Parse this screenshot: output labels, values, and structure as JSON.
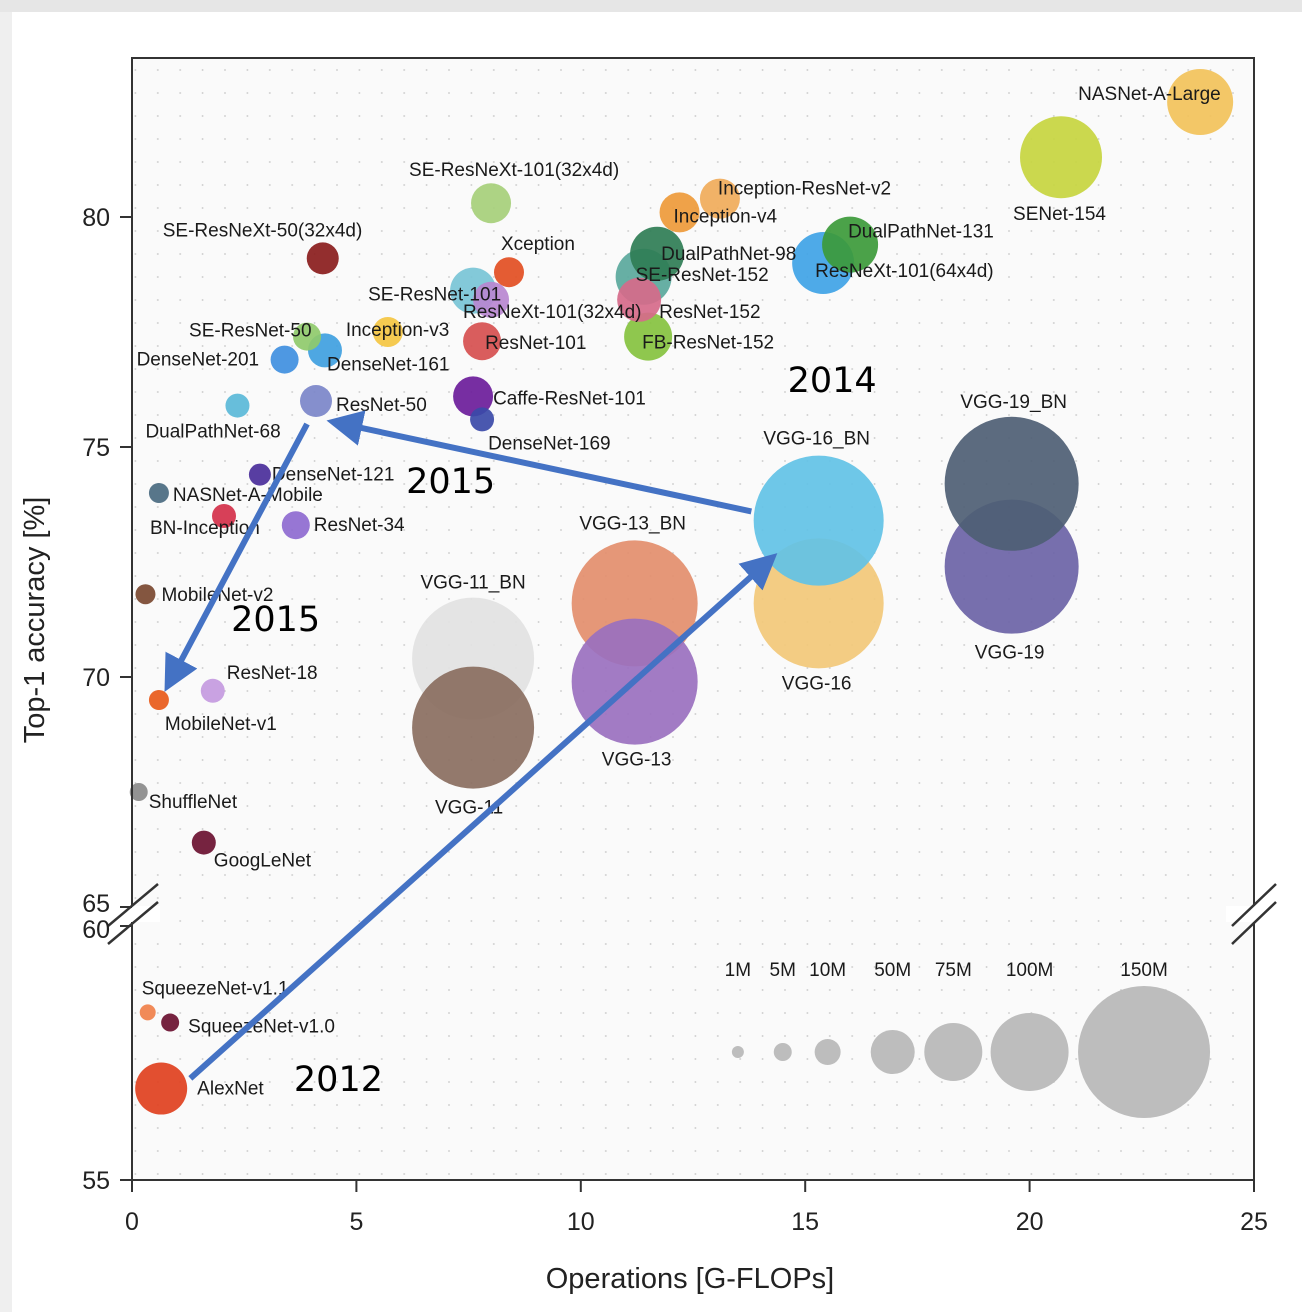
{
  "chart_data": {
    "type": "scatter",
    "xlabel": "Operations [G-FLOPs]",
    "ylabel": "Top-1 accuracy [%]",
    "xlim": [
      0,
      25
    ],
    "ylim_lower": [
      55,
      60
    ],
    "ylim_upper": [
      65,
      83.5
    ],
    "x_ticks": [
      0,
      5,
      10,
      15,
      20,
      25
    ],
    "y_ticks_upper": [
      65,
      70,
      75,
      80
    ],
    "y_ticks_lower": [
      55,
      60
    ],
    "axis_break": true,
    "grid": true,
    "size_legend": [
      {
        "label": "1M",
        "x": 13.5,
        "r": 6
      },
      {
        "label": "5M",
        "x": 14.5,
        "r": 9
      },
      {
        "label": "10M",
        "x": 15.5,
        "r": 13
      },
      {
        "label": "50M",
        "x": 16.95,
        "r": 22
      },
      {
        "label": "75M",
        "x": 18.3,
        "r": 29
      },
      {
        "label": "100M",
        "x": 20.0,
        "r": 39
      },
      {
        "label": "150M",
        "x": 22.55,
        "r": 66
      }
    ],
    "points": [
      {
        "name": "NASNet-A-Large",
        "x": 23.8,
        "y": 82.5,
        "r": 33,
        "color": "#f2c25a"
      },
      {
        "name": "SENet-154",
        "x": 20.7,
        "y": 81.3,
        "r": 41,
        "color": "#c7d53f"
      },
      {
        "name": "SE-ResNeXt-101(32x4d)",
        "x": 8.0,
        "y": 80.3,
        "r": 20,
        "color": "#a6cf79"
      },
      {
        "name": "Inception-ResNet-v2",
        "x": 13.1,
        "y": 80.4,
        "r": 20,
        "color": "#f0ab5a"
      },
      {
        "name": "Inception-v4",
        "x": 12.2,
        "y": 80.1,
        "r": 20,
        "color": "#ee9a3a"
      },
      {
        "name": "DualPathNet-131",
        "x": 16.0,
        "y": 79.4,
        "r": 28,
        "color": "#3c9a3a"
      },
      {
        "name": "SE-ResNeXt-50(32x4d)",
        "x": 4.25,
        "y": 79.1,
        "r": 16,
        "color": "#8a1c1c"
      },
      {
        "name": "DualPathNet-98",
        "x": 11.7,
        "y": 79.2,
        "r": 27,
        "color": "#2f7d55"
      },
      {
        "name": "ResNeXt-101(64x4d)",
        "x": 15.4,
        "y": 79.0,
        "r": 31,
        "color": "#3fa3e6"
      },
      {
        "name": "Xception",
        "x": 8.4,
        "y": 78.8,
        "r": 15,
        "color": "#e24e22"
      },
      {
        "name": "SE-ResNet-152",
        "x": 11.4,
        "y": 78.7,
        "r": 28,
        "color": "#5aa89c"
      },
      {
        "name": "SE-ResNet-101",
        "x": 7.6,
        "y": 78.4,
        "r": 23,
        "color": "#78c4d6"
      },
      {
        "name": "ResNeXt-101(32x4d)",
        "x": 8.0,
        "y": 78.2,
        "r": 18,
        "color": "#b887d0"
      },
      {
        "name": "ResNet-152",
        "x": 11.3,
        "y": 78.2,
        "r": 22,
        "color": "#d66a8a"
      },
      {
        "name": "FB-ResNet-152",
        "x": 11.5,
        "y": 77.4,
        "r": 24,
        "color": "#86c23f"
      },
      {
        "name": "SE-ResNet-50",
        "x": 3.9,
        "y": 77.4,
        "r": 14,
        "color": "#8fca6b"
      },
      {
        "name": "Inception-v3",
        "x": 5.7,
        "y": 77.5,
        "r": 15,
        "color": "#f4c542"
      },
      {
        "name": "ResNet-101",
        "x": 7.8,
        "y": 77.3,
        "r": 19,
        "color": "#d64f4f"
      },
      {
        "name": "DenseNet-201",
        "x": 3.4,
        "y": 76.9,
        "r": 14,
        "color": "#3f8fe0"
      },
      {
        "name": "DenseNet-161",
        "x": 4.3,
        "y": 77.1,
        "r": 17,
        "color": "#3fa0e0"
      },
      {
        "name": "Caffe-ResNet-101",
        "x": 7.6,
        "y": 76.1,
        "r": 20,
        "color": "#6b1c9a"
      },
      {
        "name": "ResNet-50",
        "x": 4.1,
        "y": 76.0,
        "r": 16,
        "color": "#7b86c9"
      },
      {
        "name": "DenseNet-169",
        "x": 7.8,
        "y": 75.6,
        "r": 12,
        "color": "#3b4aa8"
      },
      {
        "name": "DualPathNet-68",
        "x": 2.35,
        "y": 75.9,
        "r": 12,
        "color": "#5ab8d8"
      },
      {
        "name": "DenseNet-121",
        "x": 2.85,
        "y": 74.4,
        "r": 11,
        "color": "#4a2e9a"
      },
      {
        "name": "NASNet-A-Mobile",
        "x": 0.6,
        "y": 74.0,
        "r": 10,
        "color": "#4a6a80"
      },
      {
        "name": "BN-Inception",
        "x": 2.05,
        "y": 73.5,
        "r": 12,
        "color": "#d4304a"
      },
      {
        "name": "ResNet-34",
        "x": 3.65,
        "y": 73.3,
        "r": 14,
        "color": "#8e6ad0"
      },
      {
        "name": "MobileNet-v2",
        "x": 0.3,
        "y": 71.8,
        "r": 10,
        "color": "#7a4830"
      },
      {
        "name": "ResNet-18",
        "x": 1.8,
        "y": 69.7,
        "r": 12,
        "color": "#c49ae0"
      },
      {
        "name": "MobileNet-v1",
        "x": 0.6,
        "y": 69.5,
        "r": 10,
        "color": "#e85a1a"
      },
      {
        "name": "ShuffleNet",
        "x": 0.15,
        "y": 67.5,
        "r": 9,
        "color": "#8a8a8a"
      },
      {
        "name": "GoogLeNet",
        "x": 1.6,
        "y": 66.4,
        "r": 12,
        "color": "#6a1030"
      },
      {
        "name": "VGG-19_BN",
        "x": 19.6,
        "y": 74.2,
        "r": 67,
        "color": "#4e5e74"
      },
      {
        "name": "VGG-19",
        "x": 19.6,
        "y": 72.4,
        "r": 67,
        "color": "#6b63a6"
      },
      {
        "name": "VGG-16_BN",
        "x": 15.3,
        "y": 73.4,
        "r": 65,
        "color": "#62c2e6"
      },
      {
        "name": "VGG-16",
        "x": 15.3,
        "y": 71.6,
        "r": 65,
        "color": "#f2c878"
      },
      {
        "name": "VGG-13_BN",
        "x": 11.2,
        "y": 71.6,
        "r": 63,
        "color": "#e38e6c"
      },
      {
        "name": "VGG-13",
        "x": 11.2,
        "y": 69.9,
        "r": 63,
        "color": "#9a70bf"
      },
      {
        "name": "VGG-11_BN",
        "x": 7.6,
        "y": 70.4,
        "r": 61,
        "color": "#e2e2e2"
      },
      {
        "name": "VGG-11",
        "x": 7.6,
        "y": 68.9,
        "r": 61,
        "color": "#8a6e60"
      },
      {
        "name": "SqueezeNet-v1.1",
        "x": 0.35,
        "y": 58.3,
        "r": 8,
        "color": "#f0804a"
      },
      {
        "name": "SqueezeNet-v1.0",
        "x": 0.85,
        "y": 58.1,
        "r": 9,
        "color": "#6a1030"
      },
      {
        "name": "AlexNet",
        "x": 0.65,
        "y": 56.8,
        "r": 26,
        "color": "#e0401e"
      }
    ],
    "annotations": [
      {
        "text": "2012",
        "x": 4.6,
        "y": 56.75
      },
      {
        "text": "2014",
        "x": 15.6,
        "y": 76.2
      },
      {
        "text": "2015",
        "x": 7.1,
        "y": 74.0
      },
      {
        "text": "2015",
        "x": 3.2,
        "y": 71.0
      }
    ],
    "arrows": [
      {
        "from": {
          "x": 1.3,
          "y": 57.0
        },
        "to": {
          "x": 14.1,
          "y": 72.45
        }
      },
      {
        "from": {
          "x": 13.8,
          "y": 73.6
        },
        "to": {
          "x": 4.7,
          "y": 75.5
        }
      },
      {
        "from": {
          "x": 3.9,
          "y": 75.5
        },
        "to": {
          "x": 0.9,
          "y": 70.0
        }
      }
    ]
  }
}
